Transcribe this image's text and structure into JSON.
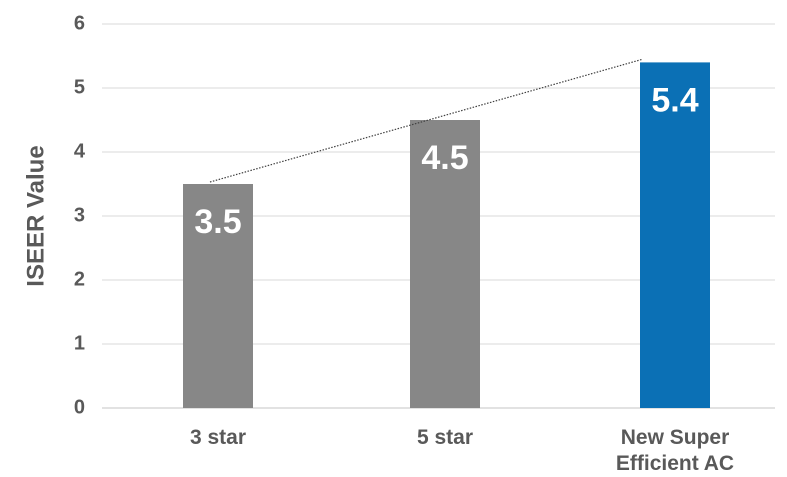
{
  "chart_data": {
    "type": "bar",
    "title": "",
    "xlabel": "",
    "ylabel": "ISEER Value",
    "ylim": [
      0,
      6
    ],
    "yticks": [
      0,
      1,
      2,
      3,
      4,
      5,
      6
    ],
    "grid": true,
    "categories": [
      "3 star",
      "5 star",
      "New Super Efficient AC"
    ],
    "category_lines": [
      [
        "3 star"
      ],
      [
        "5 star"
      ],
      [
        "New Super",
        "Efficient AC"
      ]
    ],
    "values": [
      3.5,
      4.5,
      5.4
    ],
    "data_labels": [
      "3.5",
      "4.5",
      "5.4"
    ],
    "bar_colors": [
      "#878787",
      "#878787",
      "#0b70b5"
    ],
    "trendline": {
      "style": "dotted",
      "from": "3 star",
      "to": "New Super Efficient AC"
    }
  },
  "colors": {
    "grid": "#d9d9d9",
    "text": "#595959",
    "trendline": "#404040"
  }
}
